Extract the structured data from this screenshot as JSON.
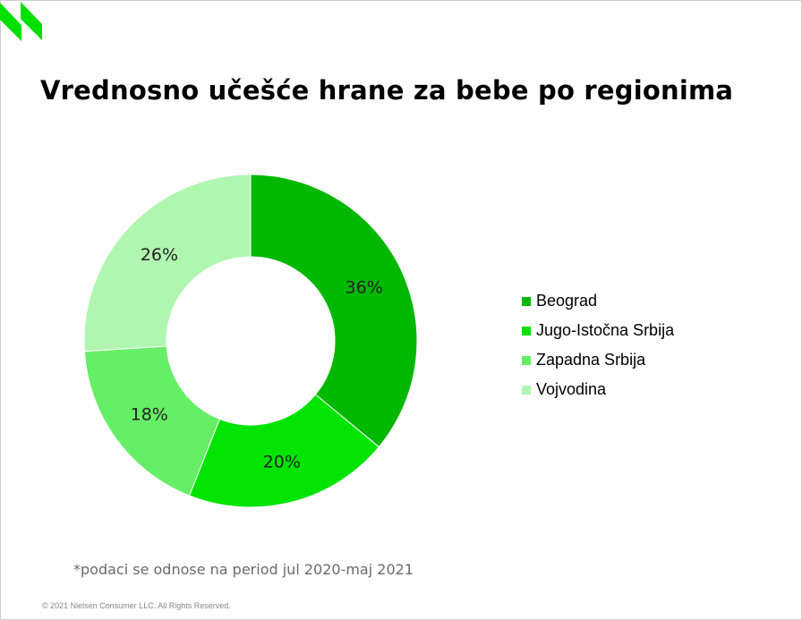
{
  "title": "Vrednosno učešće hrane za bebe po regionima",
  "chart_data": {
    "type": "pie",
    "categories": [
      "Beograd",
      "Jugo-Istočna Srbija",
      "Zapadna Srbija",
      "Vojvodina"
    ],
    "values": [
      36,
      20,
      18,
      26
    ],
    "labels": [
      "36%",
      "20%",
      "18%",
      "26%"
    ],
    "colors": [
      "#00b800",
      "#00e400",
      "#66ee66",
      "#b0f5b0"
    ],
    "donut": true,
    "legend_position": "right"
  },
  "footnote": "*podaci se odnose na period jul 2020-maj 2021",
  "copyright": "© 2021 Nielsen Consumer LLC. All Rights Reserved.",
  "logo_color": "#00e000"
}
